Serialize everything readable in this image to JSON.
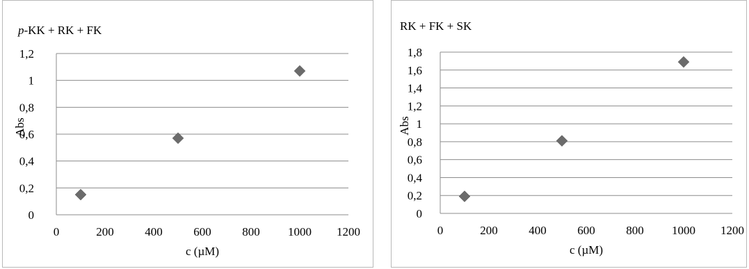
{
  "chart_data": [
    {
      "type": "scatter",
      "title_prefix": "p",
      "title_rest": "-KK + RK + FK",
      "xlabel": "c (µM)",
      "ylabel": "Abs",
      "xlim": [
        0,
        1200
      ],
      "ylim": [
        0,
        1.2
      ],
      "xticks": [
        0,
        200,
        400,
        600,
        800,
        1000,
        1200
      ],
      "yticks": [
        0,
        0.2,
        0.4,
        0.6,
        0.8,
        1,
        1.2
      ],
      "xtick_labels": [
        "0",
        "200",
        "400",
        "600",
        "800",
        "1000",
        "1200"
      ],
      "ytick_labels": [
        "0",
        "0,2",
        "0,4",
        "0,6",
        "0,8",
        "1",
        "1,2"
      ],
      "grid": "horizontal",
      "marker": "diamond",
      "marker_color": "#6b6b6b",
      "x": [
        100,
        500,
        1000
      ],
      "y": [
        0.15,
        0.57,
        1.07
      ]
    },
    {
      "type": "scatter",
      "title": "RK + FK + SK",
      "xlabel": "c (µM)",
      "ylabel": "Abs",
      "xlim": [
        0,
        1200
      ],
      "ylim": [
        0,
        1.8
      ],
      "xticks": [
        0,
        200,
        400,
        600,
        800,
        1000,
        1200
      ],
      "yticks": [
        0,
        0.2,
        0.4,
        0.6,
        0.8,
        1,
        1.2,
        1.4,
        1.6,
        1.8
      ],
      "xtick_labels": [
        "0",
        "200",
        "400",
        "600",
        "800",
        "1000",
        "1200"
      ],
      "ytick_labels": [
        "0",
        "0,2",
        "0,4",
        "0,6",
        "0,8",
        "1",
        "1,2",
        "1,4",
        "1,6",
        "1,8"
      ],
      "grid": "horizontal",
      "marker": "diamond",
      "marker_color": "#6b6b6b",
      "x": [
        100,
        500,
        1000
      ],
      "y": [
        0.19,
        0.81,
        1.69
      ]
    }
  ]
}
